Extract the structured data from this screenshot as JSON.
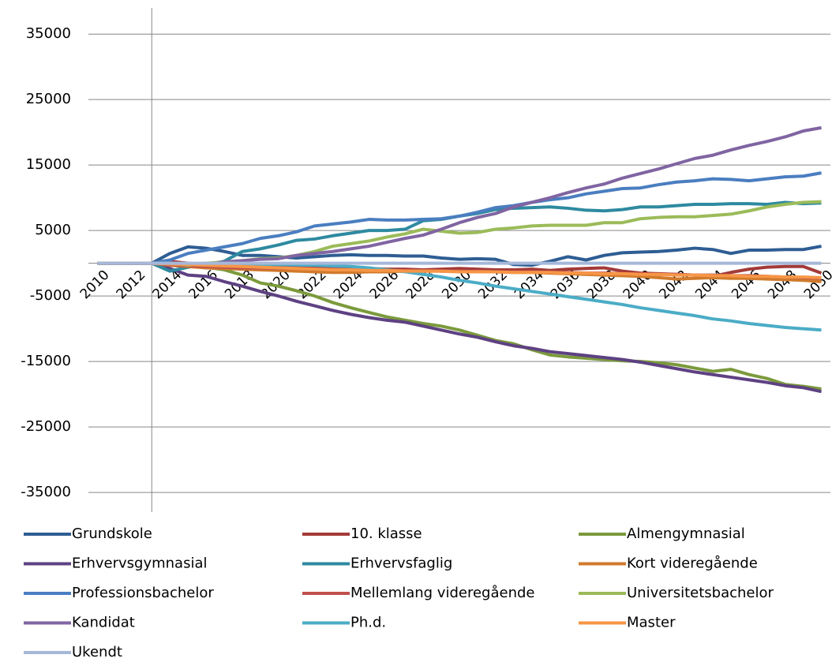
{
  "chart_data": {
    "type": "line",
    "categories": [
      "2010",
      null,
      "2012",
      null,
      "2014",
      null,
      "2016",
      null,
      "2018",
      null,
      "2020",
      null,
      "2022",
      null,
      "2024",
      null,
      "2026",
      null,
      "2028",
      null,
      "2030",
      null,
      "2032",
      null,
      "2034",
      null,
      "2036",
      null,
      "2038",
      null,
      "2040",
      null,
      "2042",
      null,
      "2044",
      null,
      "2046",
      null,
      "2048",
      null,
      "2050"
    ],
    "ylim": [
      -38000,
      39000
    ],
    "yticks": [
      -35000,
      -25000,
      -15000,
      -5000,
      5000,
      15000,
      25000,
      35000
    ],
    "grid": true,
    "legend": "bottom",
    "series": [
      {
        "name": "Grundskole",
        "color": "#2e5d93",
        "values": [
          0,
          0,
          0,
          0,
          1500,
          2500,
          2300,
          1800,
          1200,
          1200,
          1000,
          800,
          1000,
          1200,
          1300,
          1200,
          1200,
          1100,
          1100,
          800,
          600,
          700,
          600,
          -200,
          -300,
          300,
          1000,
          500,
          1200,
          1600,
          1700,
          1800,
          2000,
          2300,
          2100,
          1500,
          2000,
          2000,
          2100,
          2100,
          2600
        ]
      },
      {
        "name": "10. klasse",
        "color": "#a33a38",
        "values": [
          0,
          0,
          0,
          0,
          300,
          0,
          -200,
          -300,
          -400,
          -500,
          -500,
          -600,
          -700,
          -700,
          -800,
          -800,
          -900,
          -900,
          -1000,
          -900,
          -800,
          -900,
          -1000,
          -1000,
          -900,
          -1100,
          -900,
          -800,
          -700,
          -1200,
          -1500,
          -1600,
          -1700,
          -1800,
          -2000,
          -1400,
          -900,
          -600,
          -500,
          -500,
          -1500
        ]
      },
      {
        "name": "Almengymnasial",
        "color": "#7b9a3c",
        "values": [
          0,
          0,
          0,
          0,
          -300,
          -500,
          -600,
          -1000,
          -1800,
          -3000,
          -3500,
          -4200,
          -5000,
          -6000,
          -6800,
          -7500,
          -8200,
          -8700,
          -9200,
          -9600,
          -10200,
          -11000,
          -11800,
          -12300,
          -13200,
          -14000,
          -14300,
          -14500,
          -14700,
          -14900,
          -15000,
          -15200,
          -15500,
          -16000,
          -16500,
          -16200,
          -17000,
          -17600,
          -18500,
          -18800,
          -19200
        ]
      },
      {
        "name": "Erhvervsgymnasial",
        "color": "#5e4183",
        "values": [
          0,
          0,
          0,
          0,
          -800,
          -1800,
          -2000,
          -2800,
          -3500,
          -4300,
          -5000,
          -5800,
          -6500,
          -7200,
          -7800,
          -8300,
          -8700,
          -9000,
          -9600,
          -10200,
          -10800,
          -11300,
          -12000,
          -12600,
          -13000,
          -13500,
          -13800,
          -14100,
          -14400,
          -14700,
          -15100,
          -15600,
          -16100,
          -16600,
          -17000,
          -17400,
          -17800,
          -18200,
          -18700,
          -19000,
          -19600
        ]
      },
      {
        "name": "Erhvervsfaglig",
        "color": "#2e8aa0",
        "values": [
          0,
          0,
          0,
          0,
          -1200,
          -600,
          -200,
          300,
          1800,
          2200,
          2800,
          3500,
          3700,
          4200,
          4600,
          5000,
          5000,
          5200,
          6500,
          6700,
          7200,
          7600,
          8200,
          8400,
          8500,
          8600,
          8400,
          8100,
          8000,
          8200,
          8600,
          8600,
          8800,
          9000,
          9000,
          9100,
          9100,
          9000,
          9300,
          9100,
          9200
        ]
      },
      {
        "name": "Kort videregående",
        "color": "#d07a2c",
        "values": [
          0,
          0,
          0,
          0,
          -300,
          -500,
          -700,
          -800,
          -900,
          -1000,
          -1100,
          -1200,
          -1300,
          -1400,
          -1400,
          -1300,
          -1300,
          -1200,
          -1200,
          -1200,
          -1200,
          -1300,
          -1300,
          -1400,
          -1400,
          -1500,
          -1600,
          -1700,
          -1800,
          -1900,
          -2000,
          -2200,
          -2400,
          -2300,
          -2200,
          -2300,
          -2300,
          -2400,
          -2500,
          -2600,
          -2800
        ]
      },
      {
        "name": "Professionsbachelor",
        "color": "#4a7ec0",
        "values": [
          0,
          0,
          0,
          0,
          500,
          1500,
          2000,
          2500,
          3000,
          3800,
          4200,
          4800,
          5700,
          6000,
          6300,
          6700,
          6600,
          6600,
          6700,
          6800,
          7200,
          7800,
          8500,
          8800,
          9300,
          9700,
          10000,
          10600,
          11000,
          11400,
          11500,
          12000,
          12400,
          12600,
          12900,
          12800,
          12600,
          12900,
          13200,
          13300,
          13800
        ]
      },
      {
        "name": "Mellemlang videregående",
        "color": "#c0504d",
        "values": [
          0,
          0,
          0,
          0,
          -200,
          -400,
          -500,
          -600,
          -700,
          -700,
          -800,
          -800,
          -900,
          -900,
          -1000,
          -1000,
          -1100,
          -1100,
          -1100,
          -1200,
          -1200,
          -1200,
          -1300,
          -1300,
          -1300,
          -1400,
          -1400,
          -1500,
          -1500,
          -1600,
          -1600,
          -1700,
          -1700,
          -1800,
          -1800,
          -1900,
          -1900,
          -2000,
          -2100,
          -2200,
          -2300
        ]
      },
      {
        "name": "Universitetsbachelor",
        "color": "#9bbb59",
        "values": [
          0,
          0,
          0,
          0,
          0,
          -300,
          0,
          200,
          400,
          700,
          800,
          1200,
          1800,
          2600,
          3000,
          3400,
          4000,
          4500,
          5200,
          4900,
          4600,
          4700,
          5200,
          5400,
          5700,
          5800,
          5800,
          5800,
          6200,
          6200,
          6800,
          7000,
          7100,
          7100,
          7300,
          7500,
          8000,
          8600,
          9000,
          9300,
          9400
        ]
      },
      {
        "name": "Kandidat",
        "color": "#8064a2",
        "values": [
          0,
          0,
          0,
          0,
          0,
          -100,
          -200,
          200,
          400,
          600,
          700,
          1200,
          1500,
          1800,
          2200,
          2600,
          3200,
          3800,
          4300,
          5200,
          6200,
          7000,
          7600,
          8600,
          9300,
          10000,
          10800,
          11500,
          12100,
          13000,
          13700,
          14400,
          15200,
          16000,
          16500,
          17300,
          18000,
          18600,
          19300,
          20200,
          20700
        ]
      },
      {
        "name": "Ph.d.",
        "color": "#4bacc6",
        "values": [
          0,
          0,
          0,
          0,
          0,
          -50,
          -100,
          -100,
          -150,
          -200,
          -200,
          -250,
          -300,
          -400,
          -500,
          -700,
          -1000,
          -1300,
          -1700,
          -2100,
          -2600,
          -3000,
          -3500,
          -3900,
          -4300,
          -4700,
          -5100,
          -5500,
          -5900,
          -6300,
          -6800,
          -7200,
          -7600,
          -8000,
          -8500,
          -8800,
          -9200,
          -9500,
          -9800,
          -10000,
          -10200
        ]
      },
      {
        "name": "Master",
        "color": "#f79646",
        "values": [
          0,
          0,
          0,
          0,
          -100,
          -200,
          -300,
          -400,
          -500,
          -600,
          -700,
          -800,
          -900,
          -1000,
          -1000,
          -1100,
          -1100,
          -1200,
          -1200,
          -1200,
          -1300,
          -1300,
          -1300,
          -1400,
          -1400,
          -1400,
          -1500,
          -1500,
          -1600,
          -1600,
          -1700,
          -1700,
          -1800,
          -1800,
          -1900,
          -1900,
          -2000,
          -2000,
          -2100,
          -2100,
          -2200
        ]
      },
      {
        "name": "Ukendt",
        "color": "#a6b8d9",
        "values": [
          0,
          0,
          0,
          0,
          0,
          0,
          0,
          0,
          0,
          0,
          0,
          0,
          0,
          0,
          0,
          0,
          0,
          0,
          0,
          0,
          0,
          0,
          0,
          0,
          0,
          0,
          0,
          0,
          0,
          0,
          0,
          0,
          0,
          0,
          0,
          0,
          0,
          0,
          0,
          0,
          0
        ]
      }
    ]
  }
}
